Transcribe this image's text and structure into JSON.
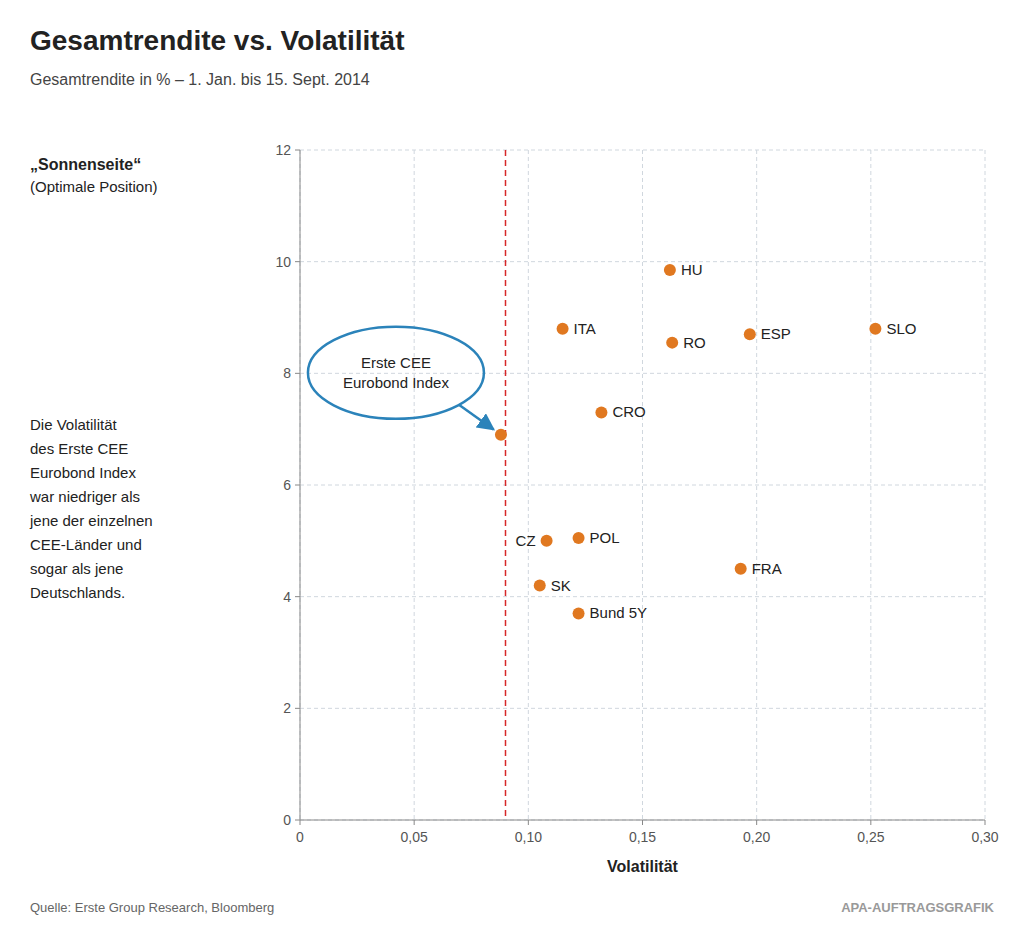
{
  "chart_data": {
    "type": "scatter",
    "title": "Gesamtrendite vs. Volatilität",
    "subtitle": "Gesamtrendite in % – 1. Jan. bis 15. Sept. 2014",
    "x_label": "Volatilität",
    "x": [
      0.088,
      0.115,
      0.162,
      0.163,
      0.132,
      0.197,
      0.252,
      0.108,
      0.122,
      0.193,
      0.105,
      0.122
    ],
    "values": [
      6.9,
      8.8,
      9.85,
      8.55,
      7.3,
      8.7,
      8.8,
      5.0,
      5.05,
      4.5,
      4.2,
      3.7
    ],
    "labels": [
      "Erste CEE\nEurobond Index",
      "ITA",
      "HU",
      "RO",
      "CRO",
      "ESP",
      "SLO",
      "CZ",
      "POL",
      "FRA",
      "SK",
      "Bund 5Y"
    ],
    "color": "#e07820",
    "xlim": [
      0,
      0.3
    ],
    "ylim": [
      0,
      12
    ],
    "xticks": [
      0,
      {
        "value": 0.05,
        "label": "0,05"
      },
      {
        "value": 0.1,
        "label": "0,10"
      },
      {
        "value": 0.15,
        "label": "0,15"
      },
      {
        "value": 0.2,
        "label": "0,20"
      },
      {
        "value": 0.25,
        "label": "0,25"
      },
      {
        "value": 0.3,
        "label": "0,30"
      }
    ],
    "yticks": [
      0,
      2,
      4,
      6,
      8,
      10,
      12
    ],
    "grid": true,
    "reference_line": {
      "x": 0.09,
      "label": "„Sonnenseite“",
      "sublabel": "(Optimale Position)"
    },
    "note": [
      "Die Volatilität",
      "des Erste CEE",
      "Eurobond Index",
      "war niedriger als",
      "jene der einzelnen",
      "CEE-Länder und",
      "sogar als jene",
      "Deutschlands."
    ],
    "source": "Quelle: Erste Group Research, Bloomberg",
    "credit": "APA-AUFTRAGSGRAFIK"
  }
}
